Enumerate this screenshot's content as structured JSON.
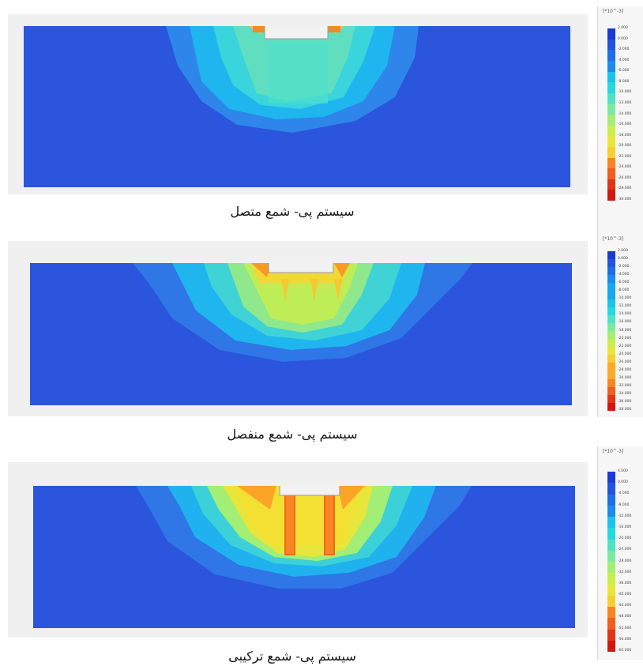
{
  "panels": [
    {
      "caption": "سیستم پی- شمع متصل",
      "legend_unit": "[*10^-3]",
      "legend_labels": [
        "2.000",
        "0.000",
        "-2.000",
        "-4.000",
        "-6.000",
        "-8.000",
        "-10.000",
        "-12.000",
        "-14.000",
        "-16.000",
        "-18.000",
        "-20.000",
        "-22.000",
        "-24.000",
        "-26.000",
        "-28.000",
        "-30.000"
      ]
    },
    {
      "caption": "سیستم پی- شمع منفصل",
      "legend_unit": "[*10^-3]",
      "legend_labels": [
        "2.000",
        "0.000",
        "-2.000",
        "-4.000",
        "-6.000",
        "-8.000",
        "-10.000",
        "-12.000",
        "-14.000",
        "-16.000",
        "-18.000",
        "-20.000",
        "-22.000",
        "-24.000",
        "-26.000",
        "-28.000",
        "-30.000",
        "-32.000",
        "-34.000",
        "-36.000",
        "-38.000"
      ]
    },
    {
      "caption": "سیستم پی- شمع ترکیبی",
      "legend_unit": "[*10^-3]",
      "legend_labels": [
        "4.000",
        "0.000",
        "-4.000",
        "-8.000",
        "-12.000",
        "-16.000",
        "-20.000",
        "-24.000",
        "-28.000",
        "-32.000",
        "-36.000",
        "-40.000",
        "-44.000",
        "-48.000",
        "-52.000",
        "-56.000",
        "-60.000"
      ]
    }
  ],
  "colors": {
    "scale": [
      "#1a3ad6",
      "#2053e0",
      "#1f6de8",
      "#1c8aee",
      "#17a7f0",
      "#18c3ec",
      "#26d8e0",
      "#4fe3c3",
      "#79eaa0",
      "#a3ee75",
      "#c9ee4e",
      "#e8e63a",
      "#f7cd2f",
      "#fcaa27",
      "#fb8421",
      "#f25e1c",
      "#e03516",
      "#d11810"
    ]
  }
}
